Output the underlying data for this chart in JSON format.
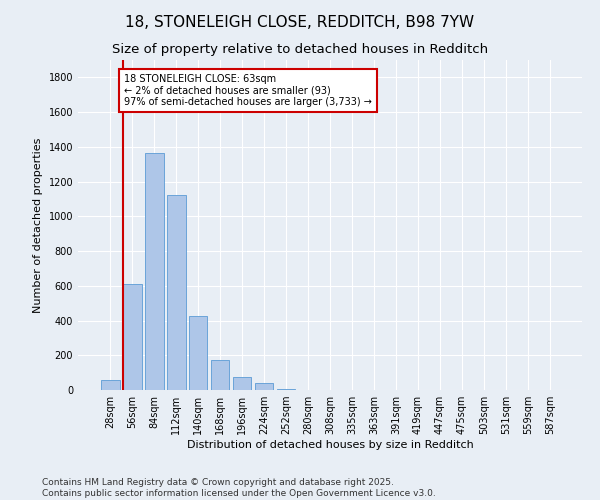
{
  "title": "18, STONELEIGH CLOSE, REDDITCH, B98 7YW",
  "subtitle": "Size of property relative to detached houses in Redditch",
  "xlabel": "Distribution of detached houses by size in Redditch",
  "ylabel": "Number of detached properties",
  "categories": [
    "28sqm",
    "56sqm",
    "84sqm",
    "112sqm",
    "140sqm",
    "168sqm",
    "196sqm",
    "224sqm",
    "252sqm",
    "280sqm",
    "308sqm",
    "335sqm",
    "363sqm",
    "391sqm",
    "419sqm",
    "447sqm",
    "475sqm",
    "503sqm",
    "531sqm",
    "559sqm",
    "587sqm"
  ],
  "values": [
    55,
    610,
    1365,
    1120,
    425,
    175,
    75,
    40,
    5,
    0,
    0,
    0,
    0,
    0,
    0,
    0,
    0,
    0,
    0,
    0,
    0
  ],
  "bar_color": "#aec6e8",
  "bar_edge_color": "#5b9bd5",
  "vline_color": "#cc0000",
  "annotation_text": "18 STONELEIGH CLOSE: 63sqm\n← 2% of detached houses are smaller (93)\n97% of semi-detached houses are larger (3,733) →",
  "annotation_box_color": "#ffffff",
  "annotation_box_edge": "#cc0000",
  "ylim": [
    0,
    1900
  ],
  "yticks": [
    0,
    200,
    400,
    600,
    800,
    1000,
    1200,
    1400,
    1600,
    1800
  ],
  "bg_color": "#e8eef5",
  "grid_color": "#ffffff",
  "footer": "Contains HM Land Registry data © Crown copyright and database right 2025.\nContains public sector information licensed under the Open Government Licence v3.0.",
  "title_fontsize": 11,
  "subtitle_fontsize": 9.5,
  "axis_label_fontsize": 8,
  "tick_fontsize": 7,
  "footer_fontsize": 6.5
}
